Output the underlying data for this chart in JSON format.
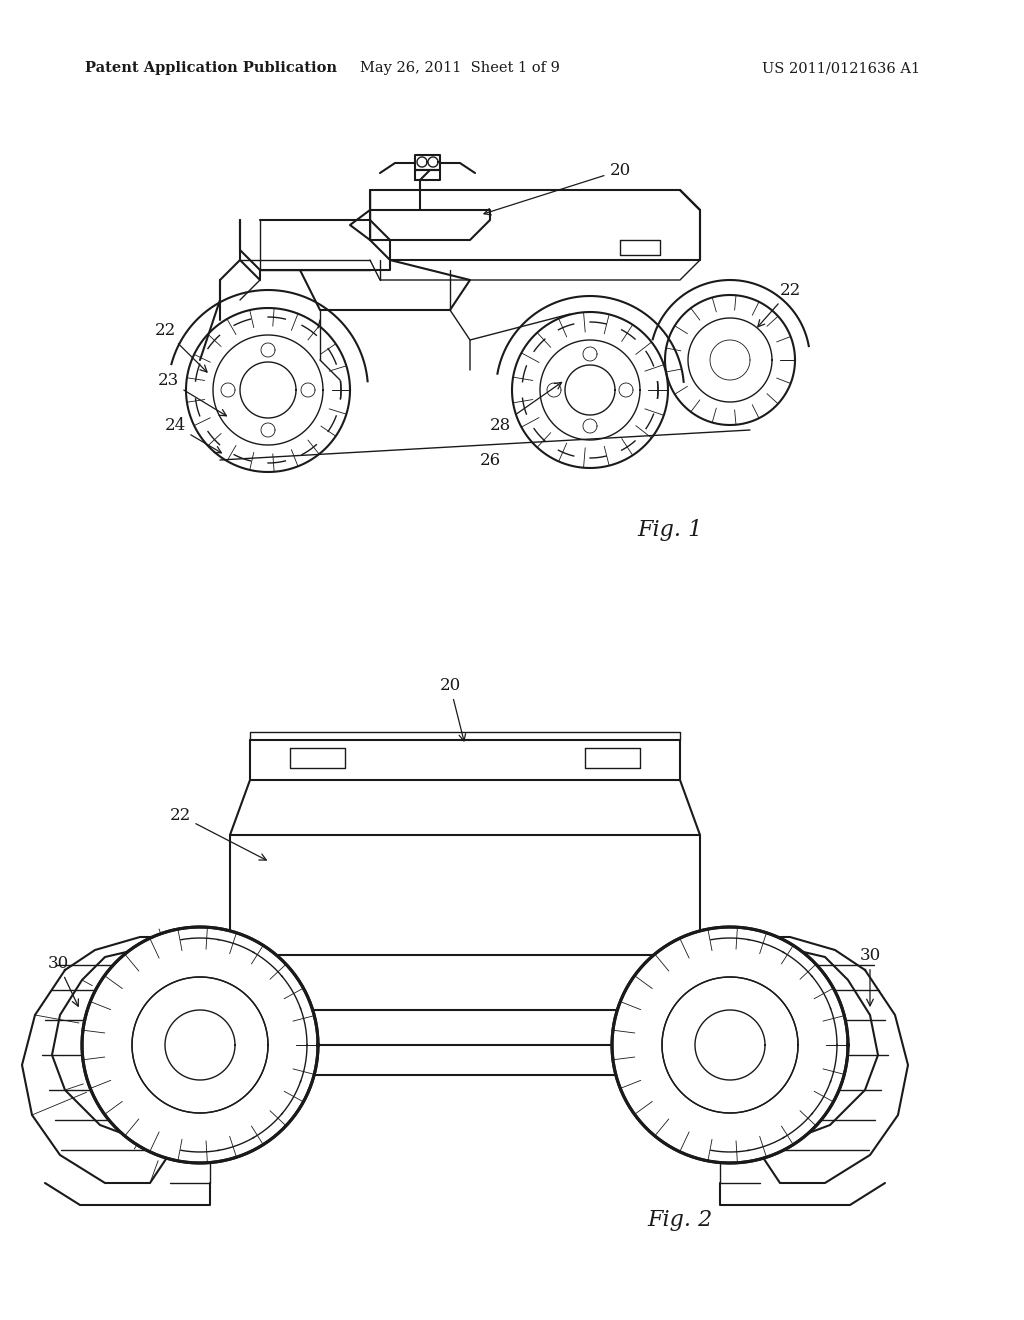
{
  "background_color": "#ffffff",
  "header_left": "Patent Application Publication",
  "header_center": "May 26, 2011  Sheet 1 of 9",
  "header_right": "US 2011/0121636 A1",
  "header_fontsize": 10.5,
  "fig1_label": "Fig. 1",
  "fig2_label": "Fig. 2",
  "color": "#1a1a1a"
}
